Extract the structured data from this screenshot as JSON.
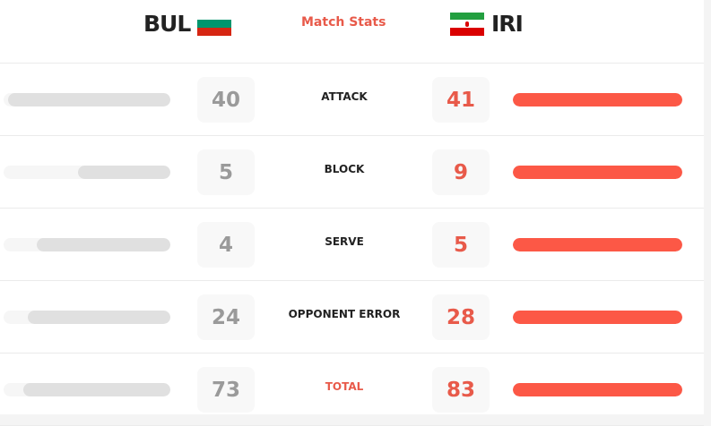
{
  "header": {
    "home_team": "BUL",
    "away_team": "IRI",
    "title": "Match Stats"
  },
  "colors": {
    "accent": "#fc5846",
    "home_bar": "#e0e0e0",
    "track": "#f6f6f6"
  },
  "stats": [
    {
      "label": "ATTACK",
      "home": 40,
      "away": 41
    },
    {
      "label": "BLOCK",
      "home": 5,
      "away": 9
    },
    {
      "label": "SERVE",
      "home": 4,
      "away": 5
    },
    {
      "label": "OPPONENT ERROR",
      "home": 24,
      "away": 28
    },
    {
      "label": "TOTAL",
      "home": 73,
      "away": 83,
      "highlight": true
    }
  ]
}
